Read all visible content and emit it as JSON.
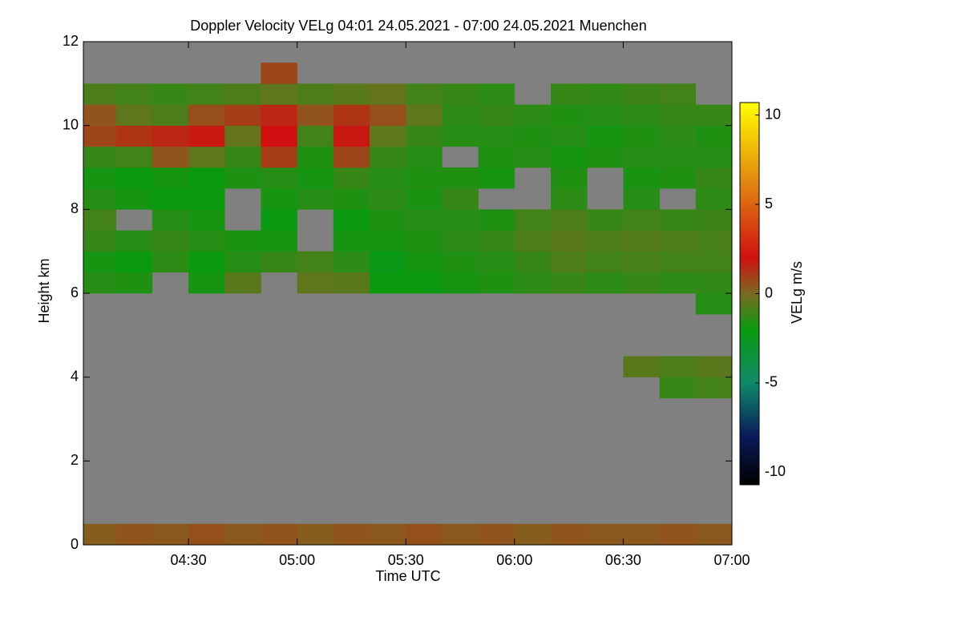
{
  "chart_data": {
    "type": "heatmap",
    "title": "Doppler Velocity VELg   04:01 24.05.2021 - 07:00 24.05.2021 Muenchen",
    "xlabel": "Time UTC",
    "ylabel": "Height km",
    "colorbar_label": "VELg m/s",
    "background": "#808080",
    "xlim": [
      241,
      420
    ],
    "ylim": [
      0,
      12
    ],
    "zlim": [
      -10.7,
      10.7
    ],
    "xticks": [
      {
        "value": 270,
        "label": "04:30"
      },
      {
        "value": 300,
        "label": "05:00"
      },
      {
        "value": 330,
        "label": "05:30"
      },
      {
        "value": 360,
        "label": "06:00"
      },
      {
        "value": 390,
        "label": "06:30"
      },
      {
        "value": 420,
        "label": "07:00"
      }
    ],
    "yticks": [
      0,
      2,
      4,
      6,
      8,
      10,
      12
    ],
    "zticks": [
      -10,
      -5,
      0,
      5,
      10
    ],
    "colorscale": [
      [
        -10.7,
        "#000000"
      ],
      [
        -8,
        "#0a1a5a"
      ],
      [
        -5,
        "#0f8a6a"
      ],
      [
        -2,
        "#0a9a10"
      ],
      [
        0,
        "#7a6a20"
      ],
      [
        2,
        "#d01010"
      ],
      [
        6,
        "#e08010"
      ],
      [
        10.7,
        "#ffff00"
      ]
    ],
    "xbins": [
      241,
      250,
      260,
      270,
      280,
      290,
      300,
      310,
      320,
      330,
      340,
      350,
      360,
      370,
      380,
      390,
      400,
      410,
      420
    ],
    "ybins": [
      0,
      0.5,
      1,
      1.5,
      2,
      2.5,
      3,
      3.5,
      4,
      4.5,
      5,
      5.5,
      6,
      6.5,
      7,
      7.5,
      8,
      8.5,
      9,
      9.5,
      10,
      10.5,
      11,
      11.5,
      12
    ],
    "values": [
      [
        0.3,
        null,
        null,
        null,
        null,
        null,
        null,
        null,
        null,
        null,
        null,
        null,
        -1.5,
        -1.8,
        -1.2,
        -1.0,
        -1.5,
        -1.8,
        -1.2,
        0.8,
        0.5,
        -0.8,
        null,
        null
      ],
      [
        0.5,
        null,
        null,
        null,
        null,
        null,
        null,
        null,
        null,
        null,
        null,
        null,
        -1.6,
        -2.0,
        -1.5,
        null,
        -1.8,
        -2.0,
        -1.0,
        1.2,
        -0.5,
        -1.0,
        null,
        null
      ],
      [
        0.4,
        null,
        null,
        null,
        null,
        null,
        null,
        null,
        null,
        null,
        null,
        null,
        null,
        -1.4,
        -1.2,
        -1.5,
        -2.0,
        -1.8,
        0.5,
        1.5,
        -0.8,
        -1.2,
        null,
        null
      ],
      [
        0.6,
        null,
        null,
        null,
        null,
        null,
        null,
        null,
        null,
        null,
        null,
        null,
        -1.8,
        -2.0,
        -1.5,
        -1.8,
        -2.0,
        -2.0,
        -0.5,
        1.8,
        0.6,
        -1.0,
        null,
        null
      ],
      [
        0.4,
        null,
        null,
        null,
        null,
        null,
        null,
        null,
        null,
        null,
        null,
        null,
        -0.6,
        -1.5,
        -1.7,
        null,
        null,
        -1.6,
        -1.2,
        -0.4,
        1.0,
        -0.8,
        null,
        null
      ],
      [
        0.5,
        null,
        null,
        null,
        null,
        null,
        null,
        null,
        null,
        null,
        null,
        null,
        null,
        -1.2,
        -1.8,
        -2.0,
        -1.8,
        -1.5,
        1.0,
        2.0,
        1.5,
        -0.5,
        0.8,
        null
      ],
      [
        0.3,
        null,
        null,
        null,
        null,
        null,
        null,
        null,
        null,
        null,
        null,
        null,
        -0.5,
        -1.0,
        null,
        null,
        -1.5,
        -1.8,
        -1.6,
        -1.0,
        0.5,
        -0.8,
        null,
        null
      ],
      [
        0.5,
        null,
        null,
        null,
        null,
        null,
        null,
        null,
        null,
        null,
        null,
        null,
        -0.6,
        -1.4,
        -1.8,
        -2.0,
        -1.6,
        -1.2,
        0.8,
        1.8,
        1.2,
        -0.6,
        null,
        null
      ],
      [
        0.4,
        null,
        null,
        null,
        null,
        null,
        null,
        null,
        null,
        null,
        null,
        null,
        -2.0,
        -2.2,
        -1.8,
        -1.6,
        -1.4,
        -1.5,
        -1.2,
        -0.5,
        0.6,
        -0.4,
        null,
        null
      ],
      [
        0.6,
        null,
        null,
        null,
        null,
        null,
        null,
        null,
        null,
        null,
        null,
        null,
        -2.0,
        -1.8,
        -1.6,
        -1.5,
        -1.7,
        -1.6,
        -1.5,
        -1.2,
        -0.5,
        -1.0,
        null,
        null
      ],
      [
        0.4,
        null,
        null,
        null,
        null,
        null,
        null,
        null,
        null,
        null,
        null,
        null,
        -1.8,
        -1.6,
        -1.4,
        -1.5,
        -1.2,
        -1.6,
        null,
        -1.5,
        -1.4,
        -1.2,
        null,
        null
      ],
      [
        0.5,
        null,
        null,
        null,
        null,
        null,
        null,
        null,
        null,
        null,
        null,
        null,
        -1.6,
        -1.5,
        -1.2,
        -1.6,
        null,
        -1.8,
        -1.6,
        -1.5,
        -1.2,
        -1.4,
        null,
        null
      ],
      [
        0.3,
        null,
        null,
        null,
        null,
        null,
        null,
        null,
        null,
        null,
        null,
        null,
        -1.4,
        -1.2,
        -0.8,
        -1.0,
        null,
        null,
        -1.5,
        -1.6,
        -1.4,
        null,
        null,
        null
      ],
      [
        0.5,
        null,
        null,
        null,
        null,
        null,
        null,
        null,
        null,
        null,
        null,
        null,
        -1.2,
        -0.8,
        -0.6,
        -0.8,
        -1.4,
        -1.6,
        -1.8,
        -1.5,
        -1.6,
        -1.2,
        null,
        null
      ],
      [
        0.4,
        null,
        null,
        null,
        null,
        null,
        null,
        null,
        null,
        null,
        null,
        null,
        -1.4,
        -1.0,
        -0.8,
        -1.2,
        null,
        null,
        -1.6,
        -1.8,
        -1.5,
        -1.3,
        null,
        null
      ],
      [
        0.4,
        null,
        null,
        null,
        null,
        null,
        null,
        null,
        -0.6,
        null,
        null,
        null,
        -1.2,
        -0.9,
        -0.7,
        -1.0,
        -1.5,
        -1.7,
        -1.5,
        -1.6,
        -1.4,
        -1.1,
        null,
        null
      ],
      [
        0.5,
        null,
        null,
        null,
        null,
        null,
        null,
        -1.2,
        -0.8,
        null,
        null,
        null,
        -1.4,
        -1.0,
        -0.8,
        -1.2,
        null,
        -1.6,
        -1.5,
        -1.4,
        -1.2,
        -1.0,
        null,
        null
      ],
      [
        0.4,
        null,
        null,
        null,
        null,
        null,
        null,
        -1.0,
        -0.6,
        null,
        null,
        -1.5,
        -1.3,
        -1.0,
        -0.9,
        -1.1,
        -1.4,
        -1.2,
        -1.5,
        -1.6,
        -1.2,
        null,
        null,
        null
      ]
    ]
  }
}
